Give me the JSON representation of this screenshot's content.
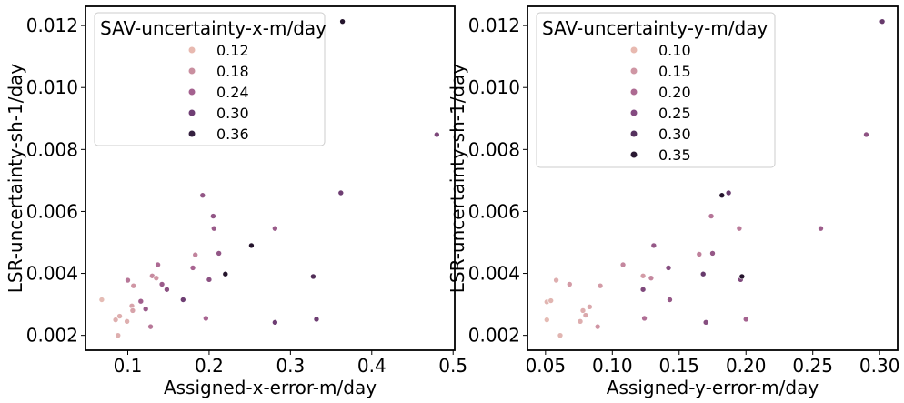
{
  "chart_data": [
    {
      "type": "scatter",
      "xlabel": "Assigned-x-error-m/day",
      "ylabel": "LSR-uncertainty-sh-1/day",
      "xlim": [
        0.048,
        0.502
      ],
      "ylim": [
        0.00152,
        0.01262
      ],
      "xticks": [
        0.1,
        0.2,
        0.3,
        0.4,
        0.5
      ],
      "xtick_labels": [
        "0.1",
        "0.2",
        "0.3",
        "0.4",
        "0.5"
      ],
      "yticks": [
        0.002,
        0.004,
        0.006,
        0.008,
        0.01,
        0.012
      ],
      "ytick_labels": [
        "0.002",
        "0.004",
        "0.006",
        "0.008",
        "0.010",
        "0.012"
      ],
      "grid": false,
      "legend": {
        "title": "SAV-uncertainty-x-m/day",
        "placement": "upper-left",
        "entries": [
          {
            "label": "0.12",
            "color": "#e8b9b0"
          },
          {
            "label": "0.18",
            "color": "#c98fa0"
          },
          {
            "label": "0.24",
            "color": "#a4618f"
          },
          {
            "label": "0.30",
            "color": "#6f3e74"
          },
          {
            "label": "0.36",
            "color": "#34203f"
          }
        ]
      },
      "color_scale": {
        "min": 0.06,
        "max": 0.38
      },
      "points": [
        {
          "x": 0.068,
          "y": 0.00315,
          "c": 0.08
        },
        {
          "x": 0.085,
          "y": 0.0025,
          "c": 0.1
        },
        {
          "x": 0.088,
          "y": 0.002,
          "c": 0.1
        },
        {
          "x": 0.09,
          "y": 0.00262,
          "c": 0.1
        },
        {
          "x": 0.099,
          "y": 0.00245,
          "c": 0.1
        },
        {
          "x": 0.1,
          "y": 0.00378,
          "c": 0.19
        },
        {
          "x": 0.105,
          "y": 0.00295,
          "c": 0.12
        },
        {
          "x": 0.106,
          "y": 0.0028,
          "c": 0.12
        },
        {
          "x": 0.107,
          "y": 0.0036,
          "c": 0.14
        },
        {
          "x": 0.116,
          "y": 0.0031,
          "c": 0.23
        },
        {
          "x": 0.122,
          "y": 0.00285,
          "c": 0.24
        },
        {
          "x": 0.128,
          "y": 0.00228,
          "c": 0.19
        },
        {
          "x": 0.13,
          "y": 0.00392,
          "c": 0.16
        },
        {
          "x": 0.135,
          "y": 0.00385,
          "c": 0.14
        },
        {
          "x": 0.137,
          "y": 0.00428,
          "c": 0.21
        },
        {
          "x": 0.142,
          "y": 0.00365,
          "c": 0.24
        },
        {
          "x": 0.148,
          "y": 0.00348,
          "c": 0.26
        },
        {
          "x": 0.168,
          "y": 0.00315,
          "c": 0.3
        },
        {
          "x": 0.18,
          "y": 0.00418,
          "c": 0.22
        },
        {
          "x": 0.183,
          "y": 0.0046,
          "c": 0.17
        },
        {
          "x": 0.192,
          "y": 0.00652,
          "c": 0.25
        },
        {
          "x": 0.196,
          "y": 0.00255,
          "c": 0.22
        },
        {
          "x": 0.2,
          "y": 0.0038,
          "c": 0.26
        },
        {
          "x": 0.205,
          "y": 0.00585,
          "c": 0.25
        },
        {
          "x": 0.206,
          "y": 0.00545,
          "c": 0.24
        },
        {
          "x": 0.212,
          "y": 0.00465,
          "c": 0.25
        },
        {
          "x": 0.22,
          "y": 0.00398,
          "c": 0.38
        },
        {
          "x": 0.252,
          "y": 0.0049,
          "c": 0.38
        },
        {
          "x": 0.281,
          "y": 0.00545,
          "c": 0.24
        },
        {
          "x": 0.281,
          "y": 0.00242,
          "c": 0.3
        },
        {
          "x": 0.328,
          "y": 0.0039,
          "c": 0.33
        },
        {
          "x": 0.332,
          "y": 0.00252,
          "c": 0.3
        },
        {
          "x": 0.362,
          "y": 0.0066,
          "c": 0.3
        },
        {
          "x": 0.364,
          "y": 0.01213,
          "c": 0.38
        },
        {
          "x": 0.48,
          "y": 0.00848,
          "c": 0.28
        }
      ]
    },
    {
      "type": "scatter",
      "xlabel": "Assigned-y-error-m/day",
      "ylabel": "LSR-uncertainty-sh-1/day",
      "xlim": [
        0.0365,
        0.3135
      ],
      "ylim": [
        0.00152,
        0.01262
      ],
      "xticks": [
        0.05,
        0.1,
        0.15,
        0.2,
        0.25,
        0.3
      ],
      "xtick_labels": [
        "0.05",
        "0.10",
        "0.15",
        "0.20",
        "0.25",
        "0.30"
      ],
      "yticks": [
        0.002,
        0.004,
        0.006,
        0.008,
        0.01,
        0.012
      ],
      "ytick_labels": [
        "0.002",
        "0.004",
        "0.006",
        "0.008",
        "0.010",
        "0.012"
      ],
      "grid": false,
      "legend": {
        "title": "SAV-uncertainty-y-m/day",
        "placement": "upper-left",
        "entries": [
          {
            "label": "0.10",
            "color": "#e8b9b0"
          },
          {
            "label": "0.15",
            "color": "#cf96a4"
          },
          {
            "label": "0.20",
            "color": "#ad6a92"
          },
          {
            "label": "0.25",
            "color": "#844a80"
          },
          {
            "label": "0.30",
            "color": "#55315e"
          },
          {
            "label": "0.35",
            "color": "#2a1a33"
          }
        ]
      },
      "color_scale": {
        "min": 0.06,
        "max": 0.37
      },
      "points": [
        {
          "x": 0.051,
          "y": 0.0025,
          "c": 0.08
        },
        {
          "x": 0.051,
          "y": 0.00308,
          "c": 0.09
        },
        {
          "x": 0.054,
          "y": 0.00312,
          "c": 0.09
        },
        {
          "x": 0.058,
          "y": 0.00378,
          "c": 0.1
        },
        {
          "x": 0.061,
          "y": 0.002,
          "c": 0.09
        },
        {
          "x": 0.068,
          "y": 0.00365,
          "c": 0.13
        },
        {
          "x": 0.076,
          "y": 0.00245,
          "c": 0.1
        },
        {
          "x": 0.078,
          "y": 0.0028,
          "c": 0.1
        },
        {
          "x": 0.08,
          "y": 0.00265,
          "c": 0.11
        },
        {
          "x": 0.083,
          "y": 0.00292,
          "c": 0.11
        },
        {
          "x": 0.089,
          "y": 0.00228,
          "c": 0.14
        },
        {
          "x": 0.091,
          "y": 0.0036,
          "c": 0.13
        },
        {
          "x": 0.108,
          "y": 0.00428,
          "c": 0.16
        },
        {
          "x": 0.123,
          "y": 0.00392,
          "c": 0.13
        },
        {
          "x": 0.123,
          "y": 0.00348,
          "c": 0.27
        },
        {
          "x": 0.124,
          "y": 0.00255,
          "c": 0.2
        },
        {
          "x": 0.129,
          "y": 0.00385,
          "c": 0.16
        },
        {
          "x": 0.131,
          "y": 0.0049,
          "c": 0.24
        },
        {
          "x": 0.142,
          "y": 0.00418,
          "c": 0.26
        },
        {
          "x": 0.143,
          "y": 0.00315,
          "c": 0.24
        },
        {
          "x": 0.165,
          "y": 0.00462,
          "c": 0.17
        },
        {
          "x": 0.168,
          "y": 0.00398,
          "c": 0.3
        },
        {
          "x": 0.17,
          "y": 0.00242,
          "c": 0.26
        },
        {
          "x": 0.174,
          "y": 0.00585,
          "c": 0.19
        },
        {
          "x": 0.175,
          "y": 0.00465,
          "c": 0.24
        },
        {
          "x": 0.182,
          "y": 0.00652,
          "c": 0.37
        },
        {
          "x": 0.187,
          "y": 0.0066,
          "c": 0.3
        },
        {
          "x": 0.195,
          "y": 0.00545,
          "c": 0.18
        },
        {
          "x": 0.196,
          "y": 0.0038,
          "c": 0.27
        },
        {
          "x": 0.197,
          "y": 0.0039,
          "c": 0.37
        },
        {
          "x": 0.2,
          "y": 0.00252,
          "c": 0.22
        },
        {
          "x": 0.256,
          "y": 0.00545,
          "c": 0.23
        },
        {
          "x": 0.29,
          "y": 0.00848,
          "c": 0.25
        },
        {
          "x": 0.302,
          "y": 0.01213,
          "c": 0.3
        }
      ]
    }
  ]
}
